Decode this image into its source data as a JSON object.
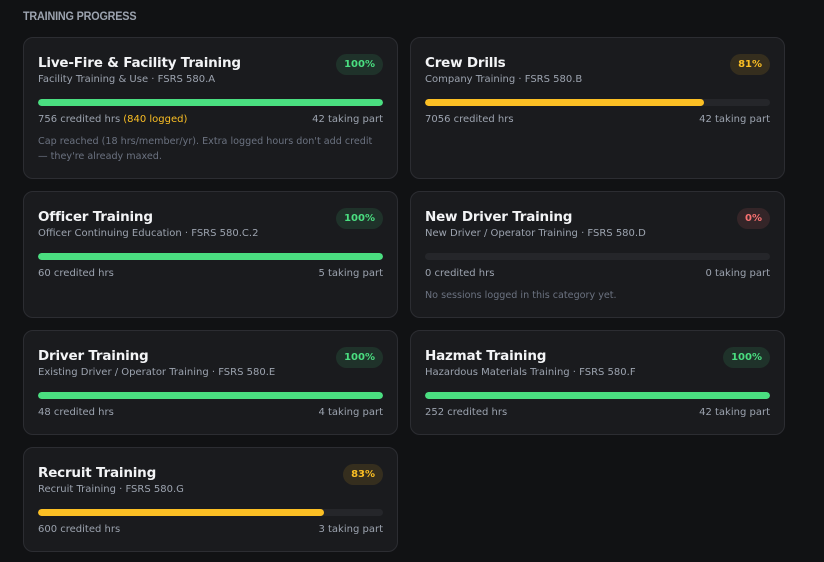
{
  "heading": "TRAINING PROGRESS",
  "cards": [
    {
      "title": "Live-Fire & Facility Training",
      "subtitle": "Facility Training & Use · FSRS 580.A",
      "progress": 100,
      "badge": "100%",
      "color": "#4ade80",
      "credited": "756 credited hrs",
      "logged": "(840 logged)",
      "participants": "42 taking part",
      "note": "Cap reached (18 hrs/member/yr). Extra logged hours don't add credit — they're already maxed."
    },
    {
      "title": "Crew Drills",
      "subtitle": "Company Training · FSRS 580.B",
      "progress": 81,
      "badge": "81%",
      "color": "#fbbf24",
      "credited": "7056 credited hrs",
      "participants": "42 taking part"
    },
    {
      "title": "Officer Training",
      "subtitle": "Officer Continuing Education · FSRS 580.C.2",
      "progress": 100,
      "badge": "100%",
      "color": "#4ade80",
      "credited": "60 credited hrs",
      "participants": "5 taking part"
    },
    {
      "title": "New Driver Training",
      "subtitle": "New Driver / Operator Training · FSRS 580.D",
      "progress": 0,
      "badge": "0%",
      "color": "#f87171",
      "credited": "0 credited hrs",
      "participants": "0 taking part",
      "note": "No sessions logged in this category yet."
    },
    {
      "title": "Driver Training",
      "subtitle": "Existing Driver / Operator Training · FSRS 580.E",
      "progress": 100,
      "badge": "100%",
      "color": "#4ade80",
      "credited": "48 credited hrs",
      "participants": "4 taking part"
    },
    {
      "title": "Hazmat Training",
      "subtitle": "Hazardous Materials Training · FSRS 580.F",
      "progress": 100,
      "badge": "100%",
      "color": "#4ade80",
      "credited": "252 credited hrs",
      "participants": "42 taking part"
    },
    {
      "title": "Recruit Training",
      "subtitle": "Recruit Training · FSRS 580.G",
      "progress": 83,
      "badge": "83%",
      "color": "#fbbf24",
      "credited": "600 credited hrs",
      "participants": "3 taking part"
    }
  ]
}
